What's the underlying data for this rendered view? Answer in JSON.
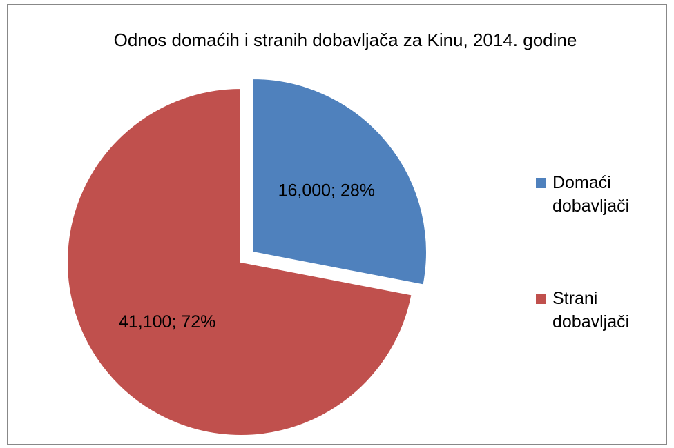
{
  "chart_data": {
    "type": "pie",
    "title": "Odnos domaćih i stranih dobavljača za Kinu, 2014. godine",
    "categories": [
      "Domaći dobavljači",
      "Strani dobavljači"
    ],
    "values": [
      16000,
      41100
    ],
    "value_labels": [
      "16,000; 28%",
      "41,100; 72%"
    ],
    "colors": [
      "#4f81bd",
      "#c0504d"
    ],
    "exploded": [
      true,
      false
    ],
    "legend": "right"
  }
}
